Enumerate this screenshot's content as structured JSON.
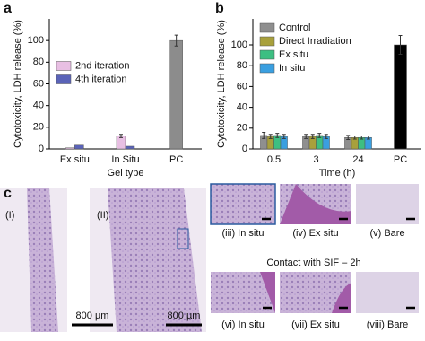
{
  "chart_data": [
    {
      "type": "bar",
      "panel": "a",
      "y_label": "Cytotoxicity, LDH release (%)",
      "x_label": "Gel type",
      "categories": [
        "Ex situ",
        "In Situ",
        "PC"
      ],
      "series": [
        {
          "name": "2nd iteration",
          "color": "#e8bfe3",
          "values": [
            1,
            12,
            null
          ],
          "errors": [
            null,
            1.5,
            null
          ]
        },
        {
          "name": "4th iteration",
          "color": "#5a63b8",
          "values": [
            3.5,
            2.5,
            null
          ],
          "errors": [
            null,
            null,
            null
          ]
        },
        {
          "color": "#8c8c8c",
          "values": [
            null,
            null,
            100
          ],
          "errors": [
            null,
            null,
            5
          ]
        }
      ],
      "ylim": [
        0,
        120
      ],
      "yticks": [
        0,
        20,
        40,
        60,
        80,
        100
      ],
      "legend": "center left"
    },
    {
      "type": "bar",
      "panel": "b",
      "y_label": "Cytotoxicity, LDH release (%)",
      "x_label": "Time (h)",
      "categories": [
        "0.5",
        "3",
        "24",
        "PC"
      ],
      "series": [
        {
          "name": "Control",
          "color": "#8f8f8f",
          "values": [
            13,
            12,
            11,
            null
          ],
          "errors": [
            3,
            2,
            2,
            null
          ]
        },
        {
          "name": "Direct Irradiation",
          "color": "#a8a03c",
          "values": [
            12,
            12,
            11,
            null
          ],
          "errors": [
            2,
            2,
            1.5,
            null
          ]
        },
        {
          "name": "Ex situ",
          "color": "#3dbf82",
          "values": [
            13,
            13,
            11,
            null
          ],
          "errors": [
            2,
            2,
            1.5,
            null
          ]
        },
        {
          "name": "In situ",
          "color": "#3a9fe0",
          "values": [
            12,
            12,
            11,
            null
          ],
          "errors": [
            2,
            2,
            1.5,
            null
          ]
        },
        {
          "color": "#000000",
          "values": [
            null,
            null,
            null,
            100
          ],
          "errors": [
            null,
            null,
            null,
            9
          ]
        }
      ],
      "ylim": [
        0,
        125
      ],
      "yticks": [
        0,
        20,
        40,
        60,
        80,
        100
      ],
      "legend": "upper left"
    }
  ],
  "panel_c": {
    "panel": "c",
    "labels": [
      "(I)",
      "(II)"
    ],
    "scale_bars": [
      "800 µm",
      "800 µm"
    ],
    "top_row": [
      "(iii) In situ",
      "(iv) Ex situ",
      "(v) Bare"
    ],
    "subtitle": "Contact with SIF – 2h",
    "bottom_row": [
      "(vi) In situ",
      "(vii) Ex situ",
      "(viii) Bare"
    ]
  }
}
